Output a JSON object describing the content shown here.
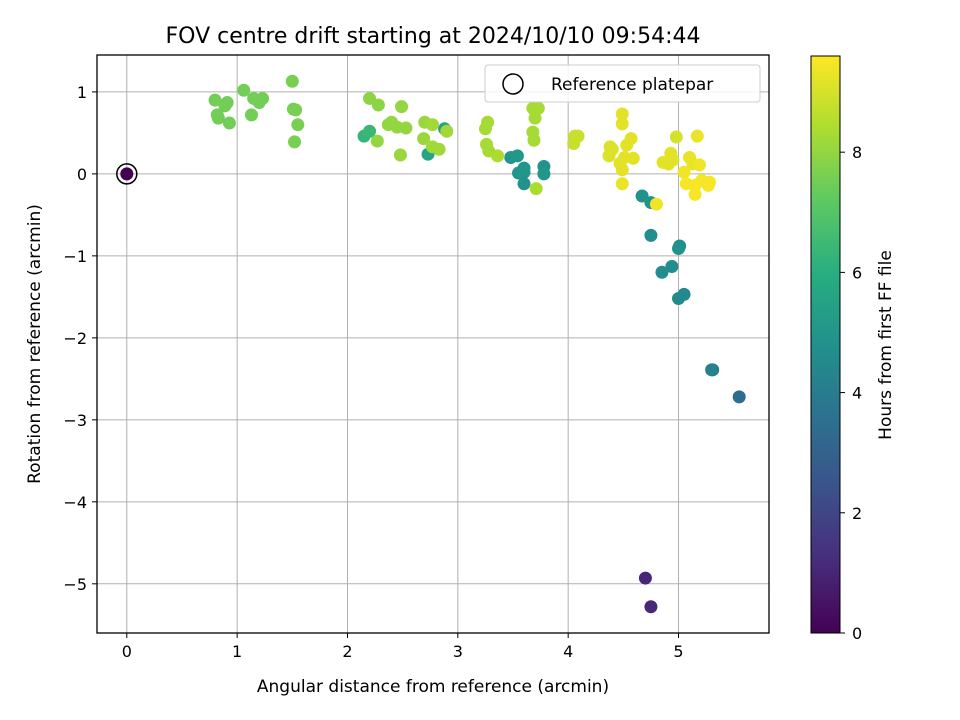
{
  "chart_data": {
    "type": "scatter",
    "title": "FOV centre drift starting at 2024/10/10 09:54:44",
    "xlabel": "Angular distance from reference (arcmin)",
    "ylabel": "Rotation from reference (arcmin)",
    "xlim": [
      -0.27,
      5.82
    ],
    "ylim": [
      -5.6,
      1.45
    ],
    "xticks": [
      0,
      1,
      2,
      3,
      4,
      5
    ],
    "yticks": [
      -5,
      -4,
      -3,
      -2,
      -1,
      0,
      1
    ],
    "grid": true,
    "legend": {
      "position": "top-right",
      "label": "Reference platepar"
    },
    "colorbar": {
      "label": "Hours from first FF file",
      "colormap": "viridis",
      "range": [
        0,
        9.6
      ],
      "ticks": [
        0,
        2,
        4,
        6,
        8
      ]
    },
    "reference_point": {
      "x": 0,
      "y": 0,
      "hours": 0
    },
    "points": [
      [
        4.7,
        -4.93,
        1.0
      ],
      [
        4.75,
        -5.28,
        1.1
      ],
      [
        5.55,
        -2.72,
        3.4
      ],
      [
        5.3,
        -2.39,
        4.1
      ],
      [
        5.31,
        -2.39,
        4.15
      ],
      [
        5.05,
        -1.47,
        4.5
      ],
      [
        5.0,
        -1.52,
        4.5
      ],
      [
        4.94,
        -1.13,
        4.6
      ],
      [
        4.85,
        -1.2,
        4.6
      ],
      [
        4.75,
        -0.75,
        4.7
      ],
      [
        5.01,
        -0.88,
        4.7
      ],
      [
        5.0,
        -0.91,
        4.8
      ],
      [
        4.67,
        -0.27,
        4.9
      ],
      [
        4.75,
        -0.35,
        4.9
      ],
      [
        3.6,
        0.02,
        4.9
      ],
      [
        3.55,
        0.01,
        5.0
      ],
      [
        3.6,
        -0.12,
        4.9
      ],
      [
        3.6,
        0.07,
        5.0
      ],
      [
        3.78,
        0.09,
        4.9
      ],
      [
        3.78,
        0.0,
        5.0
      ],
      [
        3.48,
        0.2,
        5.0
      ],
      [
        3.54,
        0.22,
        5.1
      ],
      [
        2.88,
        0.55,
        5.4
      ],
      [
        2.73,
        0.24,
        5.6
      ],
      [
        2.15,
        0.46,
        6.3
      ],
      [
        2.2,
        0.52,
        6.4
      ],
      [
        0.8,
        0.9,
        7.5
      ],
      [
        0.82,
        0.72,
        7.5
      ],
      [
        0.83,
        0.68,
        7.5
      ],
      [
        0.89,
        0.83,
        7.5
      ],
      [
        0.91,
        0.87,
        7.5
      ],
      [
        0.93,
        0.62,
        7.5
      ],
      [
        1.06,
        1.02,
        7.5
      ],
      [
        1.13,
        0.72,
        7.5
      ],
      [
        1.15,
        0.92,
        7.5
      ],
      [
        1.2,
        0.87,
        7.5
      ],
      [
        1.23,
        0.92,
        7.5
      ],
      [
        1.5,
        1.13,
        7.6
      ],
      [
        1.51,
        0.79,
        7.6
      ],
      [
        1.53,
        0.78,
        7.6
      ],
      [
        1.55,
        0.6,
        7.6
      ],
      [
        1.52,
        0.39,
        7.6
      ],
      [
        2.2,
        0.92,
        7.9
      ],
      [
        2.28,
        0.84,
        7.9
      ],
      [
        2.27,
        0.4,
        8.0
      ],
      [
        2.37,
        0.6,
        8.0
      ],
      [
        2.4,
        0.63,
        8.0
      ],
      [
        2.45,
        0.57,
        8.0
      ],
      [
        2.49,
        0.82,
        8.0
      ],
      [
        2.53,
        0.56,
        8.0
      ],
      [
        2.48,
        0.23,
        8.1
      ],
      [
        2.69,
        0.43,
        8.1
      ],
      [
        2.7,
        0.63,
        8.1
      ],
      [
        2.77,
        0.6,
        8.2
      ],
      [
        2.77,
        0.33,
        8.2
      ],
      [
        2.83,
        0.3,
        8.2
      ],
      [
        2.9,
        0.52,
        8.2
      ],
      [
        3.27,
        0.63,
        8.3
      ],
      [
        3.25,
        0.55,
        8.3
      ],
      [
        3.26,
        0.36,
        8.3
      ],
      [
        3.28,
        0.28,
        8.3
      ],
      [
        3.36,
        0.22,
        8.4
      ],
      [
        3.68,
        0.8,
        8.3
      ],
      [
        3.73,
        0.8,
        8.3
      ],
      [
        3.7,
        0.68,
        8.3
      ],
      [
        3.68,
        0.51,
        8.3
      ],
      [
        3.69,
        0.41,
        8.3
      ],
      [
        3.71,
        -0.18,
        8.4
      ],
      [
        4.05,
        0.37,
        8.8
      ],
      [
        4.06,
        0.46,
        8.8
      ],
      [
        4.09,
        0.46,
        8.8
      ],
      [
        4.37,
        0.22,
        9.1
      ],
      [
        4.38,
        0.33,
        9.1
      ],
      [
        4.4,
        0.3,
        9.1
      ],
      [
        4.49,
        0.73,
        9.2
      ],
      [
        4.49,
        0.61,
        9.2
      ],
      [
        4.51,
        0.2,
        9.2
      ],
      [
        4.53,
        0.35,
        9.2
      ],
      [
        4.57,
        0.43,
        9.2
      ],
      [
        4.59,
        0.19,
        9.2
      ],
      [
        4.47,
        0.13,
        9.2
      ],
      [
        4.49,
        0.05,
        9.2
      ],
      [
        4.49,
        -0.12,
        9.3
      ],
      [
        4.8,
        -0.37,
        9.4
      ],
      [
        4.98,
        0.45,
        9.0
      ],
      [
        4.86,
        0.14,
        9.2
      ],
      [
        4.91,
        0.12,
        9.2
      ],
      [
        4.93,
        0.25,
        9.2
      ],
      [
        4.95,
        0.17,
        9.2
      ],
      [
        5.05,
        0.02,
        9.4
      ],
      [
        5.07,
        -0.12,
        9.5
      ],
      [
        5.1,
        0.2,
        9.3
      ],
      [
        5.13,
        0.12,
        9.3
      ],
      [
        5.15,
        -0.14,
        9.5
      ],
      [
        5.15,
        -0.25,
        9.5
      ],
      [
        5.17,
        0.46,
        9.3
      ],
      [
        5.19,
        0.11,
        9.4
      ],
      [
        5.21,
        -0.08,
        9.5
      ],
      [
        5.27,
        -0.14,
        9.5
      ],
      [
        5.28,
        -0.1,
        9.5
      ]
    ]
  }
}
